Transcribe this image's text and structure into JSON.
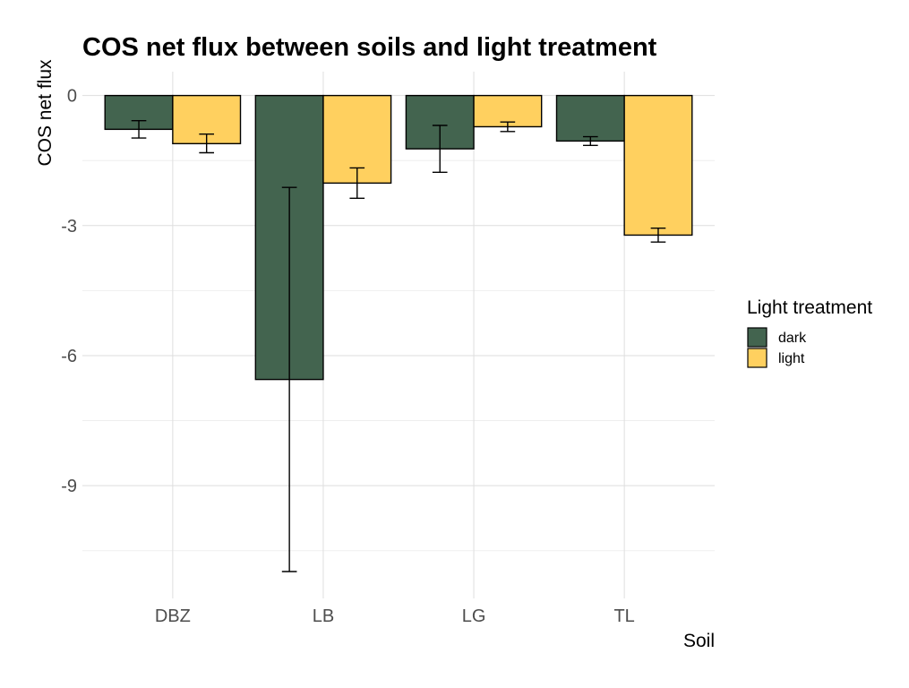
{
  "chart_data": {
    "type": "bar",
    "title": "COS net flux between soils and light treatment",
    "xlabel": "Soil",
    "ylabel": "COS net flux",
    "categories": [
      "DBZ",
      "LB",
      "LG",
      "TL"
    ],
    "series": [
      {
        "name": "dark",
        "color": "#43644f",
        "values": [
          -0.78,
          -6.55,
          -1.23,
          -1.05
        ],
        "error_low": [
          -0.98,
          -10.98,
          -1.77,
          -1.15
        ],
        "error_high": [
          -0.58,
          -2.12,
          -0.69,
          -0.95
        ]
      },
      {
        "name": "light",
        "color": "#ffd05f",
        "values": [
          -1.11,
          -2.02,
          -0.72,
          -3.22
        ],
        "error_low": [
          -1.32,
          -2.37,
          -0.83,
          -3.38
        ],
        "error_high": [
          -0.89,
          -1.67,
          -0.61,
          -3.06
        ]
      }
    ],
    "yticks": [
      0,
      -3,
      -6,
      -9
    ],
    "ytick_labels": [
      "0",
      "-3",
      "-6",
      "-9"
    ],
    "ylim": [
      -11.6,
      0.55
    ],
    "grid": true,
    "legend": {
      "title": "Light treatment",
      "placement": "right"
    }
  }
}
